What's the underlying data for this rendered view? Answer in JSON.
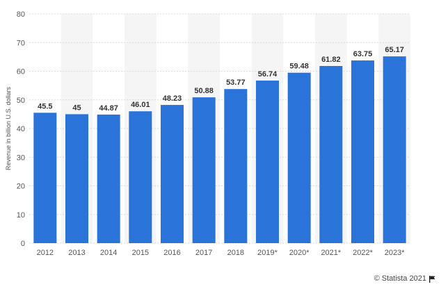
{
  "chart_data": {
    "type": "bar",
    "categories": [
      "2012",
      "2013",
      "2014",
      "2015",
      "2016",
      "2017",
      "2018",
      "2019*",
      "2020*",
      "2021*",
      "2022*",
      "2023*"
    ],
    "values": [
      45.5,
      45,
      44.87,
      46.01,
      48.23,
      50.88,
      53.77,
      56.74,
      59.48,
      61.82,
      63.75,
      65.17
    ],
    "value_labels": [
      "45.5",
      "45",
      "44.87",
      "46.01",
      "48.23",
      "50.88",
      "53.77",
      "56.74",
      "59.48",
      "61.82",
      "63.75",
      "65.17"
    ],
    "title": "",
    "xlabel": "",
    "ylabel": "Revenue in billion U.S. dollars",
    "ylim": [
      0,
      80
    ],
    "yticks": [
      "0",
      "10",
      "20",
      "30",
      "40",
      "50",
      "60",
      "70",
      "80"
    ],
    "grid": true,
    "legend": "none"
  },
  "colors": {
    "bar": "#2a73d9",
    "stripe": "#f5f5f5",
    "grid": "#d9d9d9",
    "axis_text": "#555555"
  },
  "credit": {
    "text": "© Statista 2021",
    "icon": "flag-icon"
  }
}
